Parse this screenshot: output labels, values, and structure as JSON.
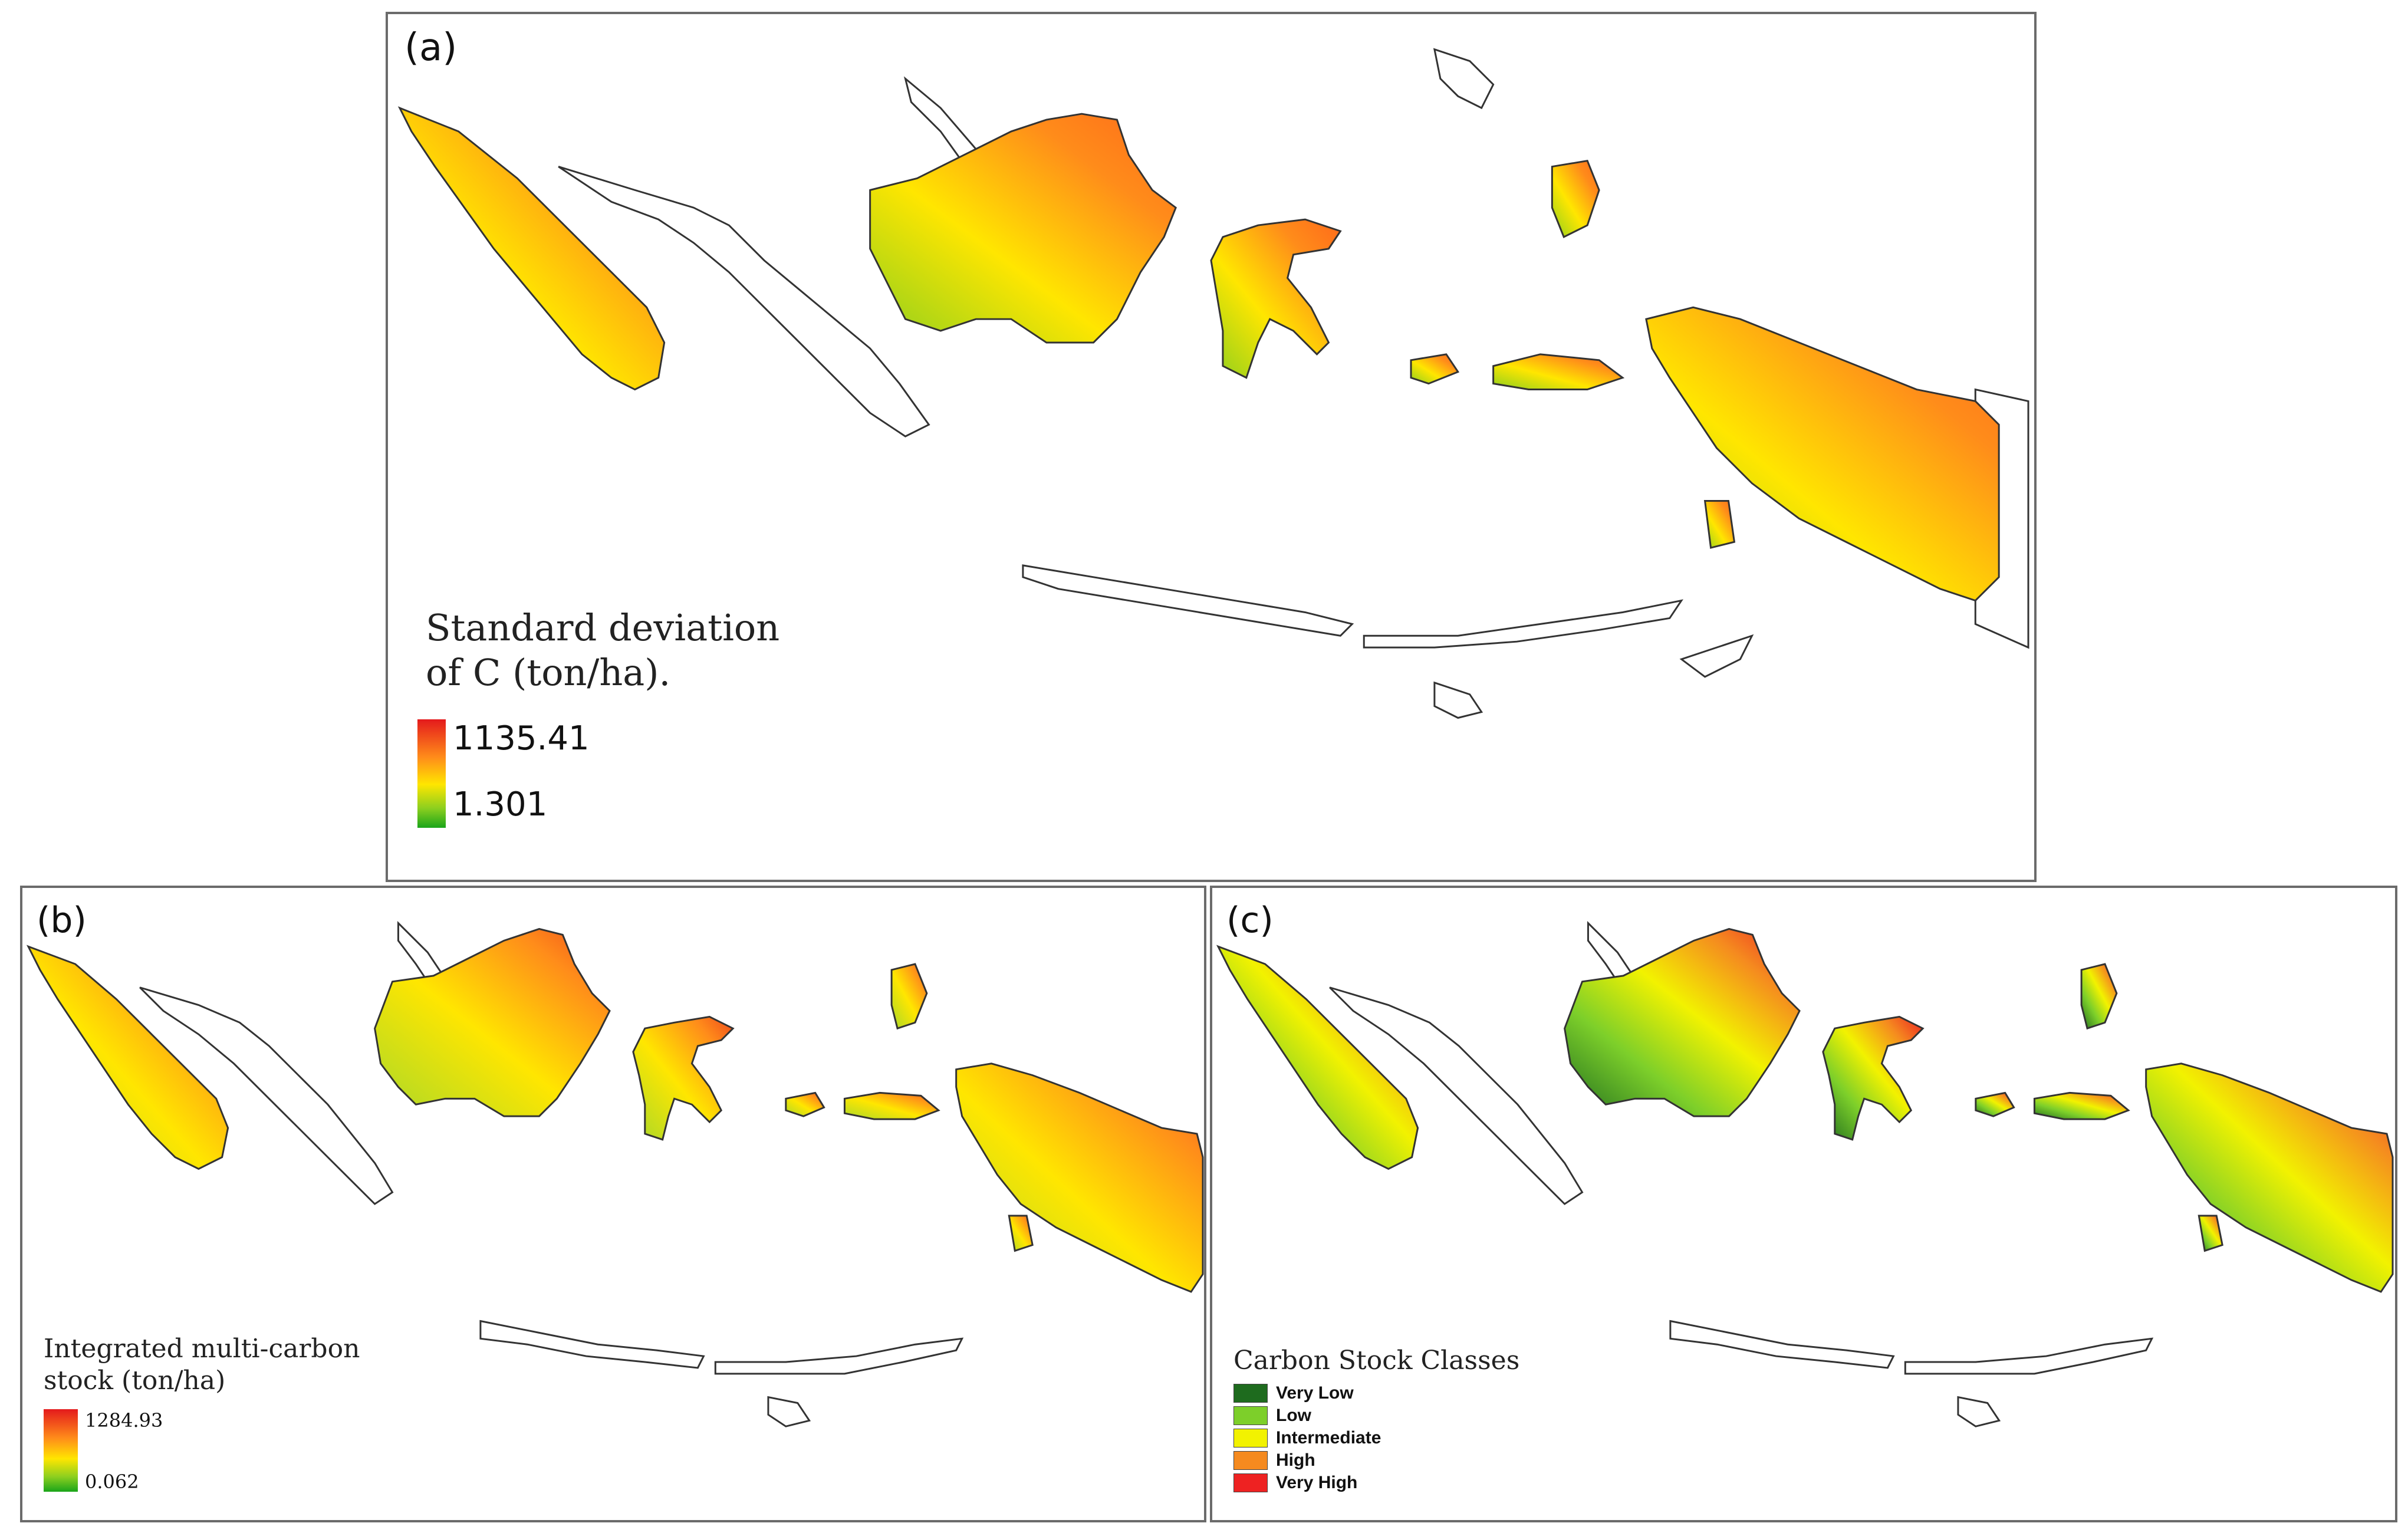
{
  "panels": {
    "a": {
      "label": "(a)",
      "legend": {
        "title_line1": "Standard deviation",
        "title_line2": "of C (ton/ha).",
        "max": "1135.41",
        "min": "1.301"
      },
      "ramp_colors": [
        "#e41a1c",
        "#ff8c1a",
        "#ffe600",
        "#8ccf1f",
        "#1aa51a"
      ]
    },
    "b": {
      "label": "(b)",
      "legend": {
        "title_line1": "Integrated multi-carbon",
        "title_line2": "stock (ton/ha)",
        "max": "1284.93",
        "min": "0.062"
      },
      "ramp_colors": [
        "#e41a1c",
        "#ff8c1a",
        "#ffe600",
        "#8ccf1f",
        "#1aa51a"
      ]
    },
    "c": {
      "label": "(c)",
      "legend": {
        "title": "Carbon Stock Classes",
        "classes": [
          {
            "label": "Very Low",
            "color": "#1e6b1e"
          },
          {
            "label": "Low",
            "color": "#7dcf2a"
          },
          {
            "label": "Intermediate",
            "color": "#f2f200"
          },
          {
            "label": "High",
            "color": "#f58a1f"
          },
          {
            "label": "Very High",
            "color": "#ee2222"
          }
        ]
      }
    }
  },
  "map_colors": {
    "outline": "#333333",
    "land_fill": "#ffffff"
  }
}
